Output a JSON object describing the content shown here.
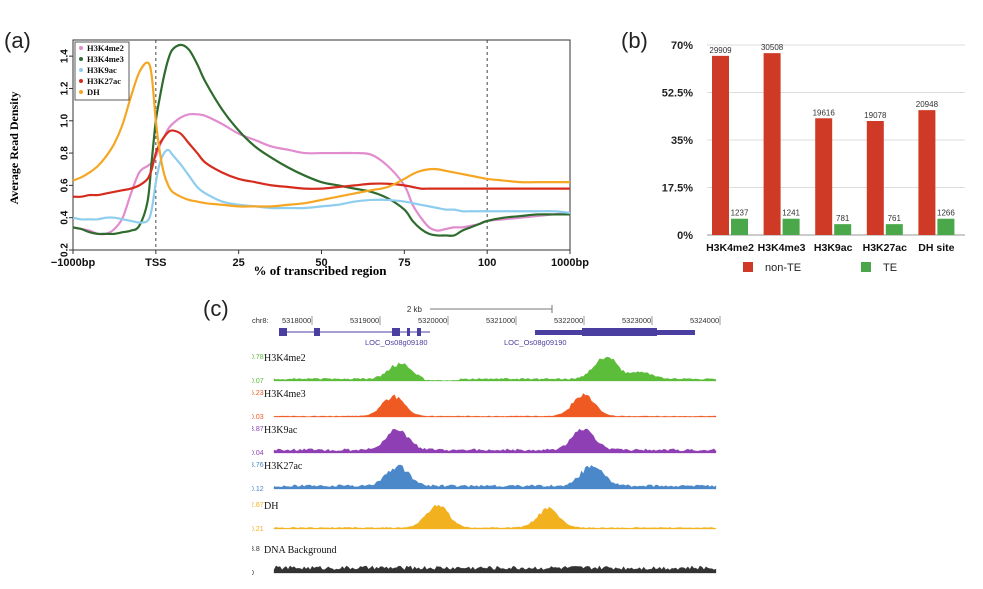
{
  "panel_labels": {
    "a": "(a)",
    "b": "(b)",
    "c": "(c)"
  },
  "colors": {
    "H3K4me2": "#e08ccf",
    "H3K4me3": "#2e6b2e",
    "H3K9ac": "#8fcdee",
    "H3K27ac": "#d62c1e",
    "DH": "#f5a623",
    "bar_nonTE": "#cf3a26",
    "bar_TE": "#4aa84a",
    "track_H3K4me2": "#5cbd3a",
    "track_H3K4me3": "#ee5a22",
    "track_H3K9ac": "#8e3fb3",
    "track_H3K27ac": "#4a88c9",
    "track_DH": "#f2b11e",
    "track_DNA": "#333333"
  },
  "chart_data": [
    {
      "type": "line",
      "ylabel": "Average Read Density",
      "xlabel": "% of transcribed region",
      "x_ticks": [
        "−1000bp",
        "TSS",
        "25",
        "50",
        "75",
        "100",
        "1000bp"
      ],
      "y_ticks": [
        "0.2",
        "0.4",
        "0.6",
        "0.8",
        "1.0",
        "1.2",
        "1.4"
      ],
      "ylim": [
        0.2,
        1.5
      ],
      "legend_position": "top-left",
      "x": [
        0,
        0.1,
        0.2,
        0.3,
        0.4,
        0.5,
        0.6,
        0.7,
        0.8,
        0.9,
        0.95,
        1,
        1.05,
        1.1,
        1.15,
        1.2,
        1.3,
        1.4,
        1.5,
        1.6,
        1.8,
        2,
        2.2,
        2.4,
        2.6,
        2.8,
        3,
        3.2,
        3.4,
        3.6,
        3.8,
        4,
        4.1,
        4.2,
        4.3,
        4.4,
        4.5,
        4.6,
        4.7,
        4.8,
        4.9,
        5,
        5.2,
        5.4,
        5.6,
        5.8,
        6
      ],
      "series": [
        {
          "name": "H3K4me2",
          "values": [
            0.34,
            0.33,
            0.32,
            0.3,
            0.3,
            0.33,
            0.4,
            0.55,
            0.68,
            0.72,
            0.74,
            0.78,
            0.85,
            0.9,
            0.95,
            0.98,
            1.02,
            1.04,
            1.04,
            1.03,
            0.98,
            0.92,
            0.88,
            0.84,
            0.82,
            0.8,
            0.8,
            0.8,
            0.8,
            0.79,
            0.72,
            0.6,
            0.48,
            0.4,
            0.34,
            0.32,
            0.33,
            0.34,
            0.34,
            0.35,
            0.36,
            0.38,
            0.39,
            0.4,
            0.41,
            0.42,
            0.43
          ]
        },
        {
          "name": "H3K4me3",
          "values": [
            0.34,
            0.33,
            0.31,
            0.3,
            0.3,
            0.3,
            0.31,
            0.32,
            0.35,
            0.5,
            0.75,
            1.0,
            1.15,
            1.28,
            1.38,
            1.44,
            1.47,
            1.44,
            1.35,
            1.24,
            1.07,
            0.94,
            0.84,
            0.77,
            0.71,
            0.66,
            0.62,
            0.6,
            0.58,
            0.56,
            0.52,
            0.45,
            0.38,
            0.33,
            0.3,
            0.29,
            0.29,
            0.29,
            0.32,
            0.34,
            0.36,
            0.38,
            0.4,
            0.41,
            0.42,
            0.42,
            0.42
          ]
        },
        {
          "name": "H3K9ac",
          "values": [
            0.4,
            0.39,
            0.39,
            0.39,
            0.4,
            0.4,
            0.39,
            0.38,
            0.37,
            0.38,
            0.45,
            0.62,
            0.74,
            0.8,
            0.82,
            0.79,
            0.73,
            0.66,
            0.59,
            0.55,
            0.5,
            0.48,
            0.47,
            0.46,
            0.46,
            0.46,
            0.47,
            0.48,
            0.5,
            0.51,
            0.51,
            0.5,
            0.49,
            0.48,
            0.47,
            0.46,
            0.45,
            0.45,
            0.44,
            0.44,
            0.44,
            0.44,
            0.44,
            0.44,
            0.44,
            0.44,
            0.43
          ]
        },
        {
          "name": "H3K27ac",
          "values": [
            0.53,
            0.53,
            0.54,
            0.54,
            0.55,
            0.56,
            0.57,
            0.58,
            0.6,
            0.64,
            0.7,
            0.8,
            0.86,
            0.9,
            0.93,
            0.94,
            0.92,
            0.86,
            0.8,
            0.74,
            0.68,
            0.64,
            0.62,
            0.6,
            0.59,
            0.58,
            0.58,
            0.59,
            0.6,
            0.61,
            0.61,
            0.6,
            0.59,
            0.58,
            0.58,
            0.58,
            0.58,
            0.58,
            0.58,
            0.58,
            0.58,
            0.58,
            0.58,
            0.58,
            0.58,
            0.58,
            0.58
          ]
        },
        {
          "name": "DH",
          "values": [
            0.63,
            0.65,
            0.68,
            0.72,
            0.78,
            0.86,
            0.98,
            1.15,
            1.3,
            1.36,
            1.28,
            1.0,
            0.8,
            0.67,
            0.6,
            0.56,
            0.53,
            0.51,
            0.5,
            0.49,
            0.48,
            0.47,
            0.47,
            0.47,
            0.48,
            0.49,
            0.51,
            0.53,
            0.55,
            0.57,
            0.59,
            0.64,
            0.67,
            0.69,
            0.7,
            0.7,
            0.69,
            0.68,
            0.67,
            0.66,
            0.65,
            0.64,
            0.63,
            0.62,
            0.62,
            0.62,
            0.62
          ]
        }
      ]
    },
    {
      "type": "bar",
      "categories": [
        "H3K4me2",
        "H3K4me3",
        "H3K9ac",
        "H3K27ac",
        "DH site"
      ],
      "y_ticks": [
        "0%",
        "17.5%",
        "35%",
        "52.5%",
        "70%"
      ],
      "ylim": [
        0,
        70
      ],
      "legend_position": "bottom",
      "series": [
        {
          "name": "non-TE",
          "values": [
            66,
            67,
            43,
            42,
            46
          ],
          "labels": [
            "29909",
            "30508",
            "19616",
            "19078",
            "20948"
          ]
        },
        {
          "name": "TE",
          "values": [
            6,
            6,
            4,
            4,
            6
          ],
          "labels": [
            "1237",
            "1241",
            "781",
            "761",
            "1266"
          ]
        }
      ]
    },
    {
      "type": "area",
      "scale_label": "2 kb",
      "chrom_label": "chr8:",
      "coords": [
        "5318000",
        "5319000",
        "5320000",
        "5321000",
        "5322000",
        "5323000",
        "5324000"
      ],
      "genes": [
        "LOC_Os08g09180",
        "LOC_Os08g09190"
      ],
      "tracks": [
        {
          "name": "H3K4me2",
          "max": "0.78",
          "min": "0.07",
          "peaks": [
            [
              0.285,
              0.65
            ],
            [
              0.75,
              1.0
            ],
            [
              0.83,
              0.3
            ]
          ],
          "base": 0.1
        },
        {
          "name": "H3K4me3",
          "max": "5.23",
          "min": "0.03",
          "peaks": [
            [
              0.27,
              0.85
            ],
            [
              0.7,
              0.9
            ]
          ],
          "base": 0.04
        },
        {
          "name": "H3K9ac",
          "max": "3.87",
          "min": "0.04",
          "peaks": [
            [
              0.28,
              0.9
            ],
            [
              0.7,
              0.95
            ]
          ],
          "base": 0.15
        },
        {
          "name": "H3K27ac",
          "max": "3.76",
          "min": "0.12",
          "peaks": [
            [
              0.28,
              0.9
            ],
            [
              0.72,
              0.9
            ]
          ],
          "base": 0.15
        },
        {
          "name": "DH",
          "max": "2.67",
          "min": "0.21",
          "peaks": [
            [
              0.37,
              1.0
            ],
            [
              0.62,
              0.8
            ]
          ],
          "base": 0.06
        },
        {
          "name": "DNA Background",
          "max": "3.8",
          "min": "0",
          "peaks": [],
          "base": 0.25
        }
      ]
    }
  ]
}
